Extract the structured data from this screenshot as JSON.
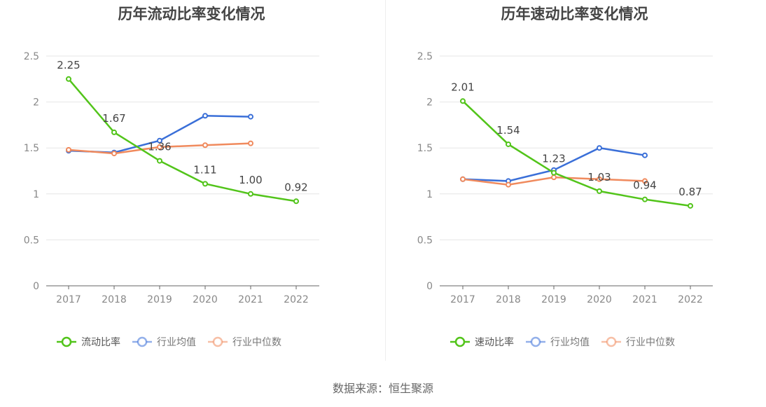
{
  "footer": "数据来源：恒生聚源",
  "chart_data": [
    {
      "type": "line",
      "title": "历年流动比率变化情况",
      "categories": [
        "2017",
        "2018",
        "2019",
        "2020",
        "2021",
        "2022"
      ],
      "ylim": [
        0,
        2.5
      ],
      "yticks": [
        "0",
        "0.5",
        "1",
        "1.5",
        "2",
        "2.5"
      ],
      "grid": true,
      "legend_position": "bottom",
      "series": [
        {
          "name": "流动比率",
          "color": "#52c41a",
          "values": [
            2.25,
            1.67,
            1.36,
            1.11,
            1.0,
            0.92
          ],
          "labels": [
            "2.25",
            "1.67",
            "1.36",
            "1.11",
            "1.00",
            "0.92"
          ]
        },
        {
          "name": "行业均值",
          "color": "#3a6fd8",
          "values": [
            1.47,
            1.45,
            1.58,
            1.85,
            1.84,
            null
          ]
        },
        {
          "name": "行业中位数",
          "color": "#f08a5d",
          "values": [
            1.48,
            1.44,
            1.51,
            1.53,
            1.55,
            null
          ]
        }
      ]
    },
    {
      "type": "line",
      "title": "历年速动比率变化情况",
      "categories": [
        "2017",
        "2018",
        "2019",
        "2020",
        "2021",
        "2022"
      ],
      "ylim": [
        0,
        2.5
      ],
      "yticks": [
        "0",
        "0.5",
        "1",
        "1.5",
        "2",
        "2.5"
      ],
      "grid": true,
      "legend_position": "bottom",
      "series": [
        {
          "name": "速动比率",
          "color": "#52c41a",
          "values": [
            2.01,
            1.54,
            1.23,
            1.03,
            0.94,
            0.87
          ],
          "labels": [
            "2.01",
            "1.54",
            "1.23",
            "1.03",
            "0.94",
            "0.87"
          ]
        },
        {
          "name": "行业均值",
          "color": "#3a6fd8",
          "values": [
            1.16,
            1.14,
            1.26,
            1.5,
            1.42,
            null
          ]
        },
        {
          "name": "行业中位数",
          "color": "#f08a5d",
          "values": [
            1.16,
            1.1,
            1.18,
            1.16,
            1.14,
            null
          ]
        }
      ]
    }
  ]
}
